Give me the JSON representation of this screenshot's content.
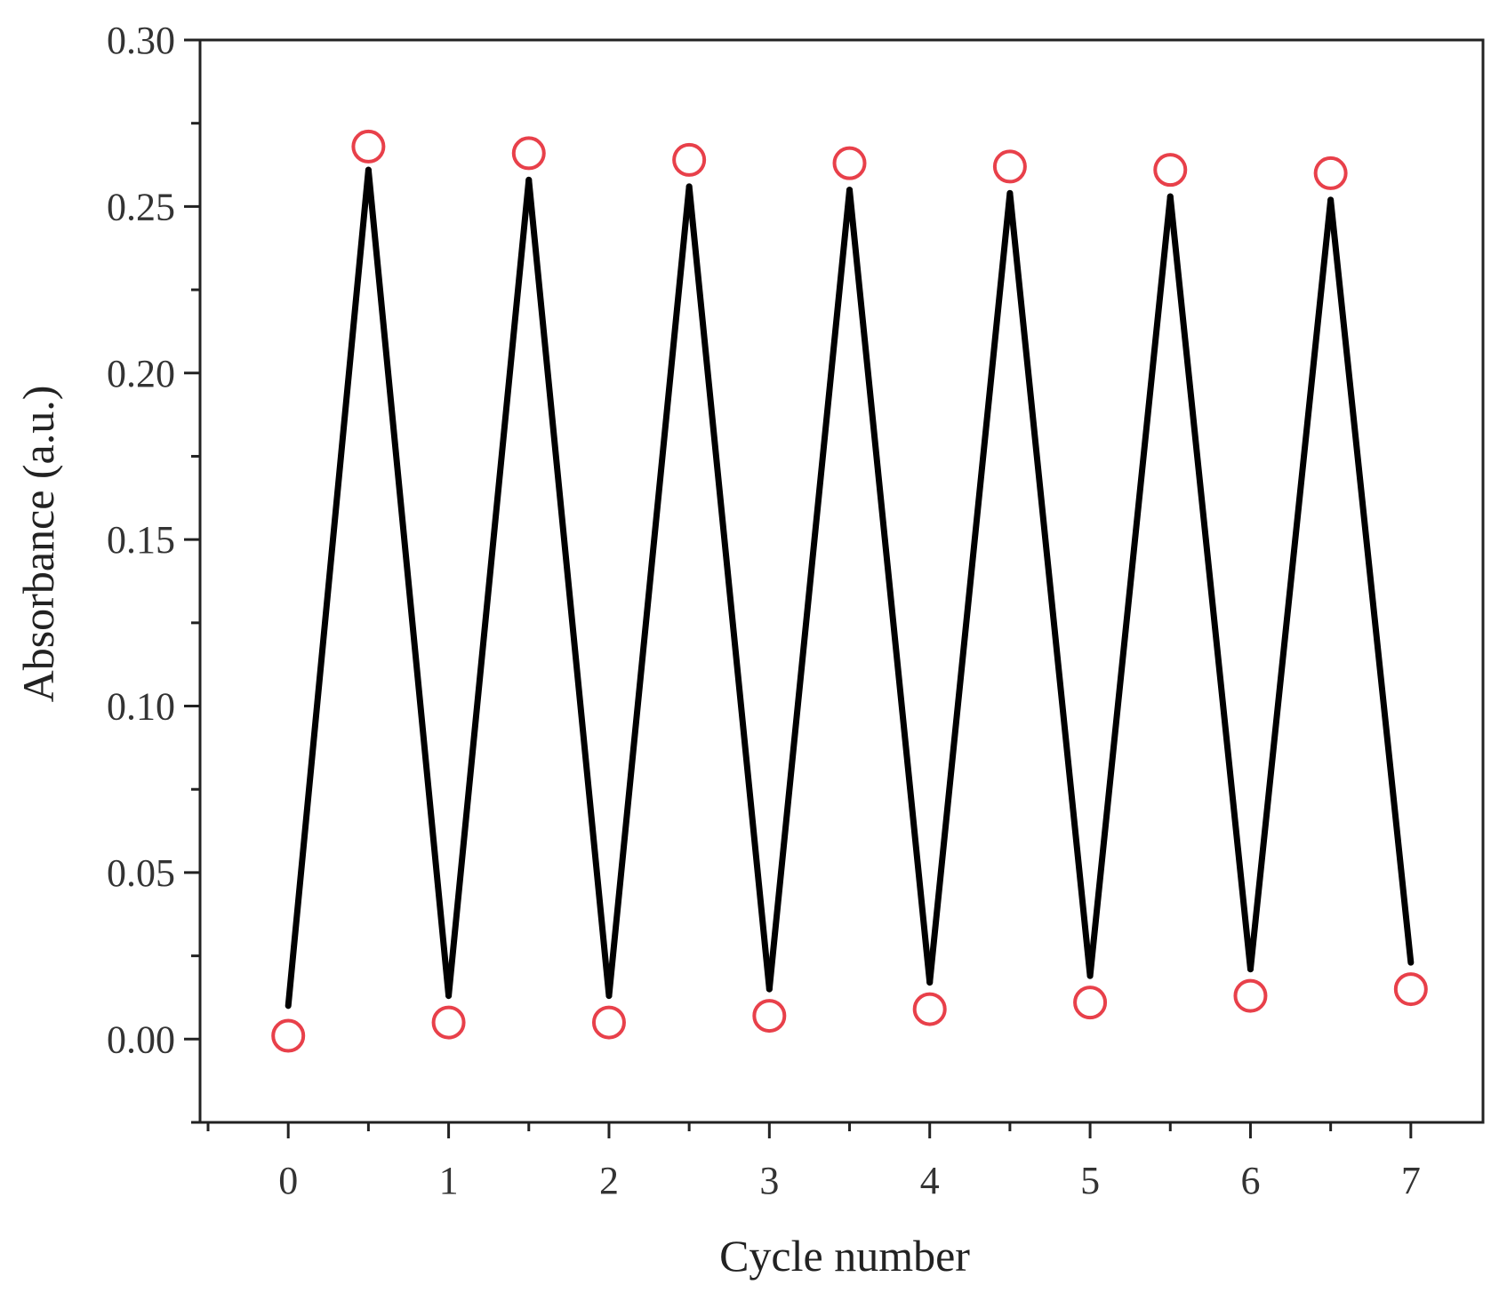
{
  "chart_data": {
    "type": "line",
    "title": "",
    "xlabel": "Cycle number",
    "ylabel": "Absorbance (a.u.)",
    "xlim": [
      -0.55,
      7.45
    ],
    "ylim": [
      -0.025,
      0.3
    ],
    "x_ticks": [
      0,
      1,
      2,
      3,
      4,
      5,
      6,
      7
    ],
    "y_ticks": [
      0.0,
      0.05,
      0.1,
      0.15,
      0.2,
      0.25,
      0.3
    ],
    "x_tick_labels": [
      "0",
      "1",
      "2",
      "3",
      "4",
      "5",
      "6",
      "7"
    ],
    "y_tick_labels": [
      "0.00",
      "0.05",
      "0.10",
      "0.15",
      "0.20",
      "0.25",
      "0.30"
    ],
    "grid": false,
    "legend": "none",
    "series": [
      {
        "style": "line",
        "color": "#000000",
        "x": [
          0,
          0.5,
          1,
          1.5,
          2,
          2.5,
          3,
          3.5,
          4,
          4.5,
          5,
          5.5,
          6,
          6.5,
          7
        ],
        "y": [
          0.01,
          0.261,
          0.013,
          0.258,
          0.013,
          0.256,
          0.015,
          0.255,
          0.017,
          0.254,
          0.019,
          0.253,
          0.021,
          0.252,
          0.023
        ]
      },
      {
        "style": "marker",
        "marker": "open-circle",
        "color": "#e8404a",
        "x": [
          0,
          0.5,
          1,
          1.5,
          2,
          2.5,
          3,
          3.5,
          4,
          4.5,
          5,
          5.5,
          6,
          6.5,
          7
        ],
        "y": [
          0.001,
          0.268,
          0.005,
          0.266,
          0.005,
          0.264,
          0.007,
          0.263,
          0.009,
          0.262,
          0.011,
          0.261,
          0.013,
          0.26,
          0.015
        ]
      }
    ]
  }
}
